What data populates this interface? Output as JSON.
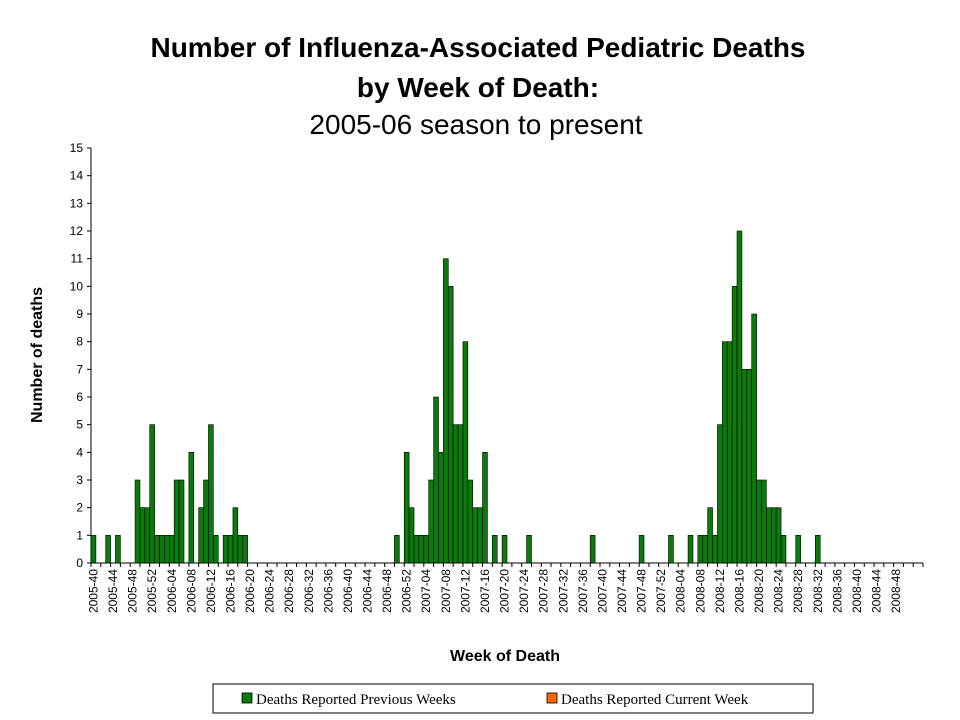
{
  "chart_data": {
    "type": "bar",
    "title_line1": "Number of Influenza-Associated Pediatric Deaths",
    "title_line2": "by Week of Death:",
    "title_line3": "2005-06 season to present",
    "xlabel": "Week of Death",
    "ylabel": "Number of deaths",
    "ylim": [
      0,
      15
    ],
    "yticks": [
      0,
      1,
      2,
      3,
      4,
      5,
      6,
      7,
      8,
      9,
      10,
      11,
      12,
      13,
      14,
      15
    ],
    "grid": false,
    "legend_position": "bottom",
    "tick_labels": [
      "2005-40",
      "2005-44",
      "2005-48",
      "2005-52",
      "2006-04",
      "2006-08",
      "2006-12",
      "2006-16",
      "2006-20",
      "2006-24",
      "2006-28",
      "2006-32",
      "2006-36",
      "2006-40",
      "2006-44",
      "2006-48",
      "2006-52",
      "2007-04",
      "2007-08",
      "2007-12",
      "2007-16",
      "2007-20",
      "2007-24",
      "2007-28",
      "2007-32",
      "2007-36",
      "2007-40",
      "2007-44",
      "2007-48",
      "2007-52",
      "2008-04",
      "2008-08",
      "2008-12",
      "2008-16",
      "2008-20",
      "2008-24",
      "2008-28",
      "2008-32",
      "2008-36",
      "2008-40",
      "2008-44",
      "2008-48"
    ],
    "series": [
      {
        "name": "Deaths Reported Previous Weeks",
        "color": "#0a7a0a",
        "values": [
          1,
          0,
          0,
          1,
          0,
          1,
          0,
          0,
          0,
          3,
          2,
          2,
          5,
          1,
          1,
          1,
          1,
          3,
          3,
          0,
          4,
          0,
          2,
          3,
          5,
          1,
          0,
          1,
          1,
          2,
          1,
          1,
          0,
          0,
          0,
          0,
          0,
          0,
          0,
          0,
          0,
          0,
          0,
          0,
          0,
          0,
          0,
          0,
          0,
          0,
          0,
          0,
          0,
          0,
          0,
          0,
          0,
          0,
          0,
          0,
          0,
          0,
          1,
          0,
          4,
          2,
          1,
          1,
          1,
          3,
          6,
          4,
          11,
          10,
          5,
          5,
          8,
          3,
          2,
          2,
          4,
          0,
          1,
          0,
          1,
          0,
          0,
          0,
          0,
          1,
          0,
          0,
          0,
          0,
          0,
          0,
          0,
          0,
          0,
          0,
          0,
          0,
          1,
          0,
          0,
          0,
          0,
          0,
          0,
          0,
          0,
          0,
          1,
          0,
          0,
          0,
          0,
          0,
          1,
          0,
          0,
          0,
          1,
          0,
          1,
          1,
          2,
          1,
          5,
          8,
          8,
          10,
          12,
          7,
          7,
          9,
          3,
          3,
          2,
          2,
          2,
          1,
          0,
          0,
          1,
          0,
          0,
          0,
          1,
          0,
          0,
          0,
          0,
          0,
          0,
          0,
          0,
          0,
          0,
          0,
          0,
          0,
          0,
          0,
          0,
          0,
          0,
          0,
          0,
          0,
          0,
          0,
          0,
          0,
          0,
          0,
          0,
          0,
          0,
          0,
          0,
          0,
          0,
          0,
          0,
          0,
          0,
          0,
          0,
          0,
          0
        ]
      },
      {
        "name": "Deaths Reported Current Week",
        "color": "#ff6600",
        "values": []
      }
    ]
  }
}
